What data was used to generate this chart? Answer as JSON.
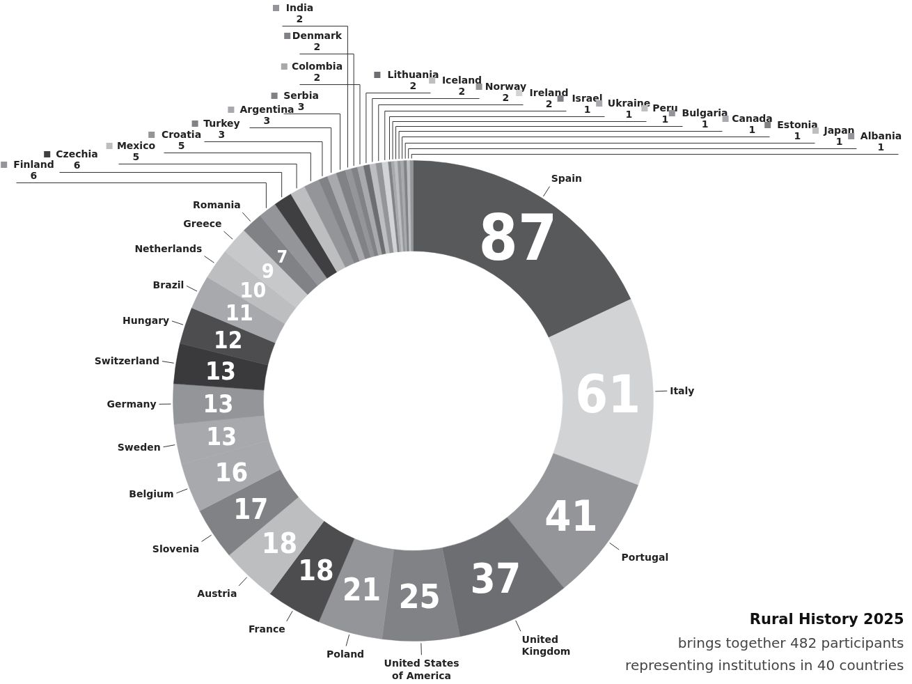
{
  "chart_data": {
    "type": "donut",
    "title": "Rural History 2025",
    "subtitle": "brings together 482 participants representing institutions in 40 countries",
    "data_labels": true,
    "legend": "top",
    "categories": [
      "Spain",
      "Italy",
      "Portugal",
      "United Kingdom",
      "United States of America",
      "Poland",
      "France",
      "Austria",
      "Slovenia",
      "Belgium",
      "Sweden",
      "Germany",
      "Switzerland",
      "Hungary",
      "Brazil",
      "Netherlands",
      "Greece",
      "Romania",
      "Finland",
      "Czechia",
      "Mexico",
      "Croatia",
      "Turkey",
      "Argentina",
      "Serbia",
      "India",
      "Denmark",
      "Colombia",
      "Lithuania",
      "Iceland",
      "Norway",
      "Ireland",
      "Israel",
      "Ukraine",
      "Peru",
      "Bulgaria",
      "Canada",
      "Estonia",
      "Japan",
      "Albania"
    ],
    "values": [
      87,
      61,
      41,
      37,
      25,
      21,
      18,
      18,
      17,
      16,
      13,
      13,
      13,
      12,
      11,
      10,
      9,
      7,
      6,
      6,
      5,
      5,
      3,
      3,
      3,
      2,
      2,
      2,
      2,
      2,
      2,
      2,
      1,
      1,
      1,
      1,
      1,
      1,
      1,
      1
    ],
    "colors": [
      "#58595b",
      "#d1d3d4",
      "#939598",
      "#6d6e71",
      "#808285",
      "#939598",
      "#4d4d4f",
      "#bcbec0",
      "#808285",
      "#a7a9ac",
      "#a7a9ac",
      "#939598",
      "#3a3a3c",
      "#4d4d4f",
      "#a7a9ac",
      "#bcbec0",
      "#c7c8ca",
      "#808285",
      "#939598",
      "#3f3f41",
      "#bcbec0",
      "#939598",
      "#808285",
      "#a7a9ac",
      "#808285",
      "#939598",
      "#808285",
      "#a7a9ac",
      "#6d6e71",
      "#bcbec0",
      "#939598",
      "#d1d3d4",
      "#808285",
      "#a7a9ac",
      "#bcbec0",
      "#939598",
      "#a7a9ac",
      "#808285",
      "#bcbec0",
      "#939598"
    ]
  }
}
